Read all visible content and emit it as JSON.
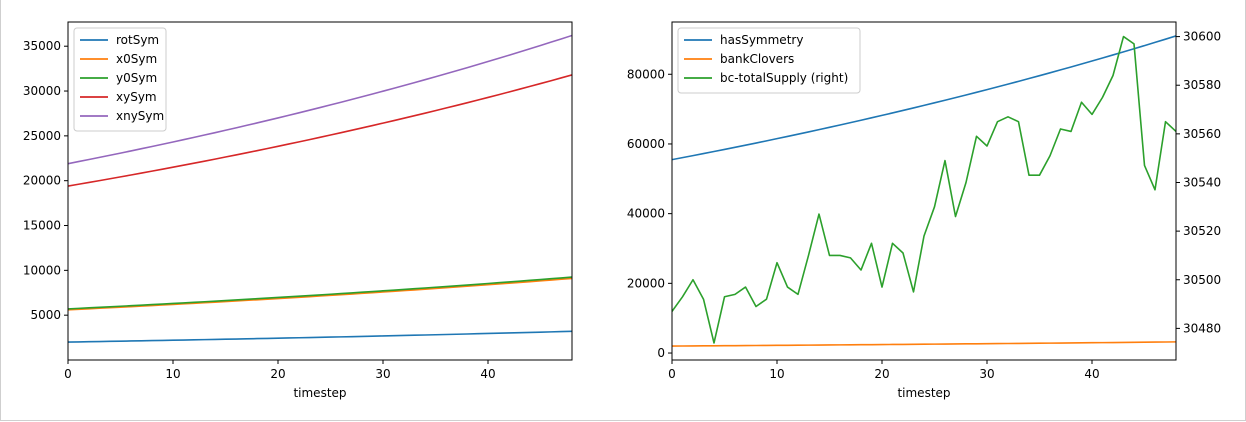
{
  "chart_data": [
    {
      "type": "line",
      "xlabel": "timestep",
      "ylabel": "",
      "xlim": [
        0,
        48
      ],
      "ylim": [
        0,
        37700
      ],
      "xticks": [
        0,
        10,
        20,
        30,
        40
      ],
      "yticks": [
        5000,
        10000,
        15000,
        20000,
        25000,
        30000,
        35000
      ],
      "legend": "upper-left",
      "series": [
        {
          "name": "rotSym",
          "color": "#1f77b4",
          "start": 2000,
          "end": 3200
        },
        {
          "name": "x0Sym",
          "color": "#ff7f0e",
          "start": 5600,
          "end": 9100
        },
        {
          "name": "y0Sym",
          "color": "#2ca02c",
          "start": 5700,
          "end": 9250
        },
        {
          "name": "xySym",
          "color": "#d62728",
          "start": 19400,
          "end": 31800
        },
        {
          "name": "xnySym",
          "color": "#9467bd",
          "start": 21900,
          "end": 36200
        }
      ]
    },
    {
      "type": "line",
      "xlabel": "timestep",
      "ylabel": "",
      "xlim": [
        0,
        48
      ],
      "ylim": [
        -2000,
        95000
      ],
      "y2lim": [
        30467,
        30606
      ],
      "xticks": [
        0,
        10,
        20,
        30,
        40
      ],
      "yticks": [
        0,
        20000,
        40000,
        60000,
        80000
      ],
      "y2ticks": [
        30480,
        30500,
        30520,
        30540,
        30560,
        30580,
        30600
      ],
      "legend": "upper-left",
      "series": [
        {
          "name": "hasSymmetry",
          "color": "#1f77b4",
          "start": 55500,
          "end": 91000
        },
        {
          "name": "bankClovers",
          "color": "#ff7f0e",
          "start": 2000,
          "end": 3200
        },
        {
          "name": "bc-totalSupply (right)",
          "color": "#2ca02c",
          "axis": "right",
          "values": [
            30487,
            30493,
            30500,
            30492,
            30474,
            30493,
            30494,
            30497,
            30489,
            30492,
            30507,
            30497,
            30494,
            30510,
            30527,
            30510,
            30510,
            30509,
            30504,
            30515,
            30497,
            30515,
            30511,
            30495,
            30518,
            30530,
            30549,
            30526,
            30540,
            30559,
            30555,
            30565,
            30567,
            30565,
            30543,
            30543,
            30551,
            30562,
            30561,
            30573,
            30568,
            30575,
            30584,
            30600,
            30597,
            30547,
            30537,
            30565,
            30561
          ]
        }
      ]
    }
  ]
}
